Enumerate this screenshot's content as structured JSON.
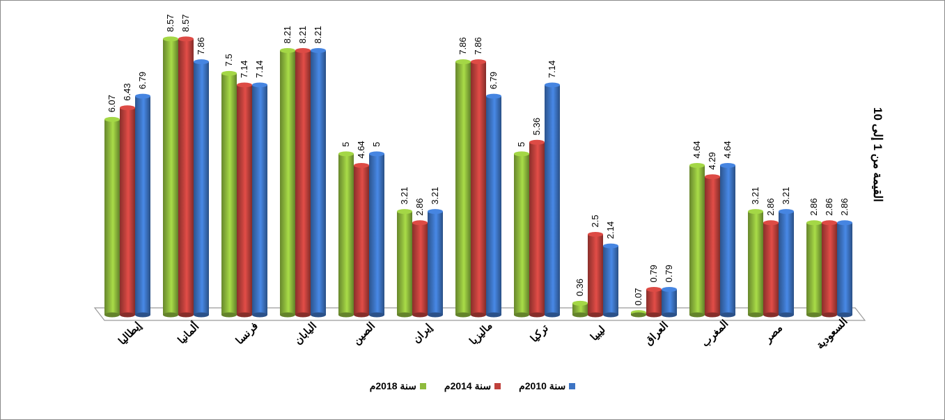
{
  "chart_data": {
    "type": "bar",
    "categories": [
      "إيطاليا",
      "ألمانيا",
      "فرنسا",
      "اليابان",
      "الصين",
      "إيران",
      "ماليزيا",
      "تركيا",
      "ليبيا",
      "العراق",
      "المغرب",
      "مصر",
      "السعودية"
    ],
    "series": [
      {
        "name": "سنة 2018م",
        "color": "#8fbb3d",
        "values": [
          6.07,
          8.57,
          7.5,
          8.21,
          5,
          3.21,
          7.86,
          5,
          0.36,
          0.07,
          4.64,
          3.21,
          2.86
        ]
      },
      {
        "name": "سنة 2014م",
        "color": "#c0413c",
        "values": [
          6.43,
          8.57,
          7.14,
          8.21,
          4.64,
          2.86,
          7.86,
          5.36,
          2.5,
          0.79,
          4.29,
          2.86,
          2.86
        ]
      },
      {
        "name": "سنة 2010م",
        "color": "#3d74c4",
        "values": [
          6.79,
          7.86,
          7.14,
          8.21,
          5,
          3.21,
          6.79,
          7.14,
          2.14,
          0.79,
          4.64,
          3.21,
          2.86
        ]
      }
    ],
    "ylabel": "القيمة من 1 إلى 10",
    "ylim": [
      0,
      10
    ],
    "grid": false,
    "legend_position": "bottom"
  }
}
